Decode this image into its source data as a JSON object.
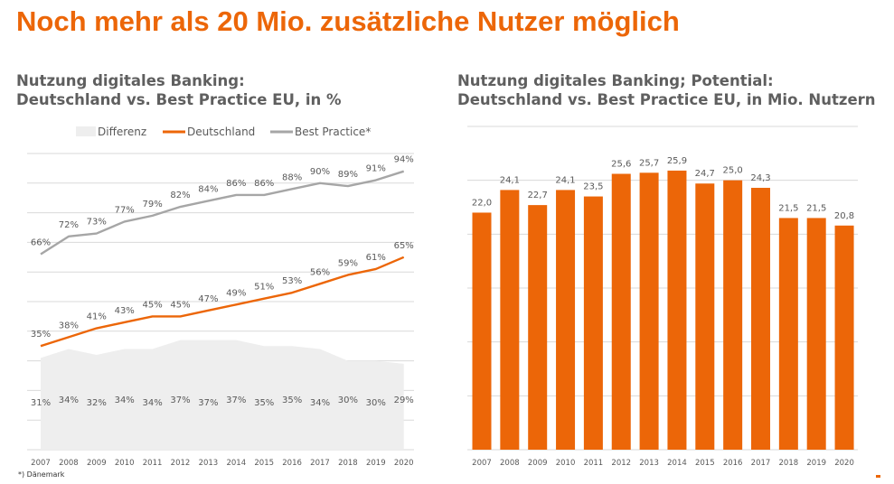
{
  "main_title": "Noch mehr als 20 Mio. zusätzliche Nutzer möglich",
  "footnote": "*) Dänemark",
  "colors": {
    "accent": "#ec6608",
    "grey_line": "#a6a6a6",
    "area": "#eeeeee",
    "grid": "#d9d9d9",
    "text": "#595959"
  },
  "chart_data": [
    {
      "type": "line",
      "title_line1": "Nutzung digitales Banking:",
      "title_line2": "Deutschland vs. Best Practice EU, in %",
      "categories": [
        "2007",
        "2008",
        "2009",
        "2010",
        "2011",
        "2012",
        "2013",
        "2014",
        "2015",
        "2016",
        "2017",
        "2018",
        "2019",
        "2020"
      ],
      "ylim": [
        0,
        100
      ],
      "grid": true,
      "legend_position": "top",
      "series": [
        {
          "name": "Differenz",
          "type": "area",
          "values": [
            31,
            34,
            32,
            34,
            34,
            37,
            37,
            37,
            35,
            35,
            34,
            30,
            30,
            29
          ],
          "labels": [
            "31%",
            "34%",
            "32%",
            "34%",
            "34%",
            "37%",
            "37%",
            "37%",
            "35%",
            "35%",
            "34%",
            "30%",
            "30%",
            "29%"
          ]
        },
        {
          "name": "Deutschland",
          "type": "line",
          "values": [
            35,
            38,
            41,
            43,
            45,
            45,
            47,
            49,
            51,
            53,
            56,
            59,
            61,
            65
          ],
          "labels": [
            "35%",
            "38%",
            "41%",
            "43%",
            "45%",
            "45%",
            "47%",
            "49%",
            "51%",
            "53%",
            "56%",
            "59%",
            "61%",
            "65%"
          ]
        },
        {
          "name": "Best Practice*",
          "type": "line",
          "values": [
            66,
            72,
            73,
            77,
            79,
            82,
            84,
            86,
            86,
            88,
            90,
            89,
            91,
            94
          ],
          "labels": [
            "66%",
            "72%",
            "73%",
            "77%",
            "79%",
            "82%",
            "84%",
            "86%",
            "86%",
            "88%",
            "90%",
            "89%",
            "91%",
            "94%"
          ]
        }
      ]
    },
    {
      "type": "bar",
      "title_line1": "Nutzung digitales Banking; Potential:",
      "title_line2": "Deutschland vs. Best Practice EU, in Mio. Nutzern",
      "categories": [
        "2007",
        "2008",
        "2009",
        "2010",
        "2011",
        "2012",
        "2013",
        "2014",
        "2015",
        "2016",
        "2017",
        "2018",
        "2019",
        "2020"
      ],
      "values": [
        22.0,
        24.1,
        22.7,
        24.1,
        23.5,
        25.6,
        25.7,
        25.9,
        24.7,
        25.0,
        24.3,
        21.5,
        21.5,
        20.8
      ],
      "labels": [
        "22,0",
        "24,1",
        "22,7",
        "24,1",
        "23,5",
        "25,6",
        "25,7",
        "25,9",
        "24,7",
        "25,0",
        "24,3",
        "21,5",
        "21,5",
        "20,8"
      ],
      "ylim": [
        0,
        30
      ],
      "grid": true
    }
  ]
}
